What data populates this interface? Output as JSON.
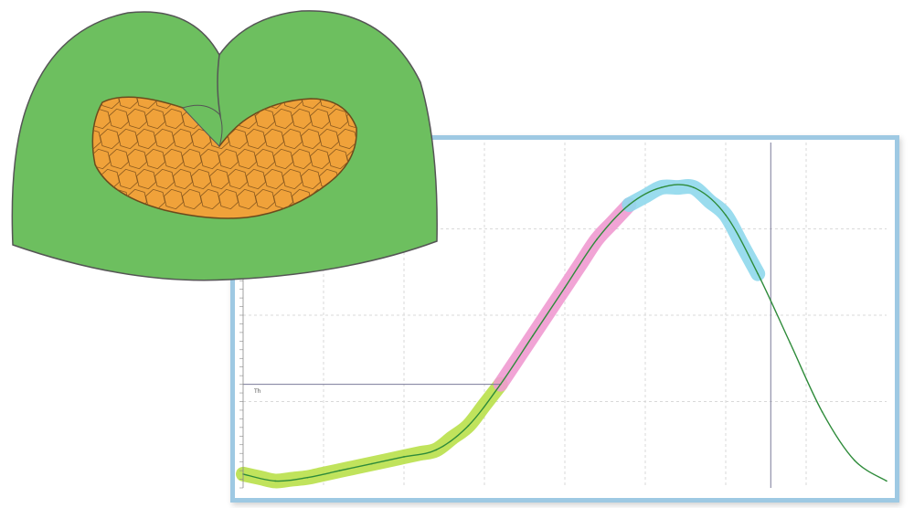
{
  "colors": {
    "tissue_outer": "#6dbf5f",
    "tissue_outline": "#555555",
    "cells_fill": "#f0a23a",
    "cell_walls": "#8a5a20",
    "frame_border": "#9ec9e3",
    "grid": "#d9d9d9",
    "curve": "#2e8b3a",
    "highlight_phase_1": "#b9e04a",
    "highlight_phase_2": "#f09ad0",
    "highlight_phase_3": "#8fd8ec",
    "threshold_line": "#7a7a9a"
  },
  "icons": {
    "tissue_cross_section": "tissue-cross-section-illustration"
  },
  "chart": {
    "threshold_label": "Th"
  },
  "chart_data": {
    "type": "line",
    "title": "",
    "xlabel": "",
    "ylabel": "",
    "xlim": [
      0,
      100
    ],
    "ylim": [
      0,
      100
    ],
    "grid": true,
    "x": [
      0,
      5,
      10,
      15,
      20,
      25,
      30,
      35,
      40,
      45,
      50,
      55,
      60,
      65,
      70,
      75,
      80,
      85,
      90,
      95,
      100
    ],
    "y": [
      4,
      2,
      3,
      5,
      7,
      9,
      11,
      18,
      30,
      44,
      58,
      72,
      82,
      87,
      87,
      79,
      62,
      42,
      22,
      8,
      2
    ],
    "threshold_y": 30,
    "phases": [
      {
        "x_range": [
          0,
          40
        ]
      },
      {
        "x_range": [
          40,
          60
        ]
      },
      {
        "x_range": [
          60,
          82
        ]
      }
    ]
  }
}
